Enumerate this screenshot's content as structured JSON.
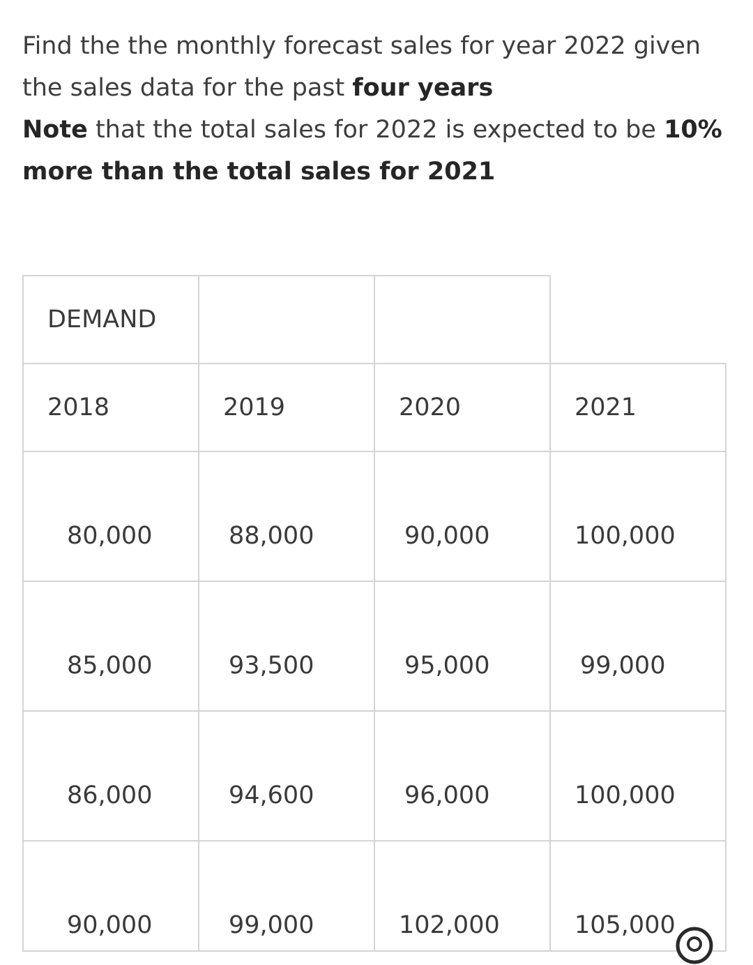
{
  "question": {
    "line1": "Find the the monthly forecast sales for year 2022 given",
    "line2_prefix": "the sales data for the past ",
    "line2_bold": "four years",
    "line3_bold": "Note",
    "line3_text": " that the total sales for 2022 is expected to be ",
    "line3_bold2": "10%",
    "line4_bold": "more than the total sales for 2021"
  },
  "table": {
    "header": "DEMAND",
    "years": [
      "2018",
      "2019",
      "2020",
      "2021"
    ],
    "rows": [
      [
        "80,000",
        "88,000",
        "90,000",
        "100,000"
      ],
      [
        "85,000",
        "93,500",
        "95,000",
        "99,000"
      ],
      [
        "86,000",
        "94,600",
        "96,000",
        "100,000"
      ],
      [
        "90,000",
        "99,000",
        "102,000",
        "105,000"
      ]
    ]
  }
}
